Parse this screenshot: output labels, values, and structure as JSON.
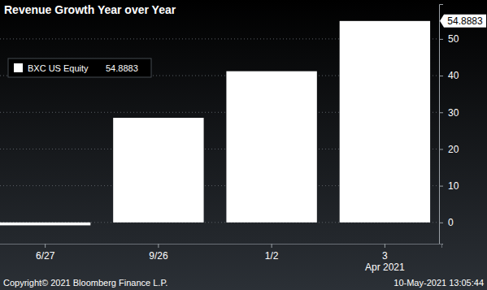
{
  "chart_data": {
    "type": "bar",
    "title": "Revenue Growth Year over Year",
    "categories": [
      "6/27",
      "9/26",
      "1/2",
      "3"
    ],
    "annotations": [
      "Apr 2021"
    ],
    "series": [
      {
        "name": "BXC US Equity",
        "color": "#ffffff",
        "values": [
          -0.8,
          28.5,
          41.2,
          54.8883
        ]
      }
    ],
    "ylim": [
      -5.8,
      59.5
    ],
    "yticks": [
      0,
      10,
      20,
      30,
      40,
      50
    ],
    "grid": true,
    "legend": "top-left",
    "source": "Copyright© 2021 Bloomberg Finance L.P.",
    "timestamp": "10-May-2021 13:05:44"
  }
}
